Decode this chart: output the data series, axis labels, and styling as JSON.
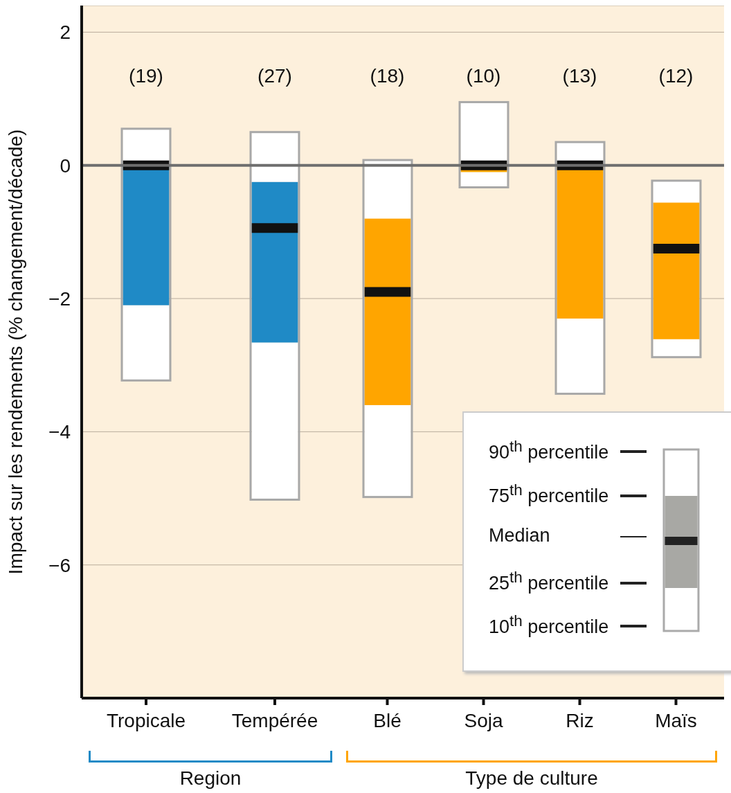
{
  "chart_data": [
    {
      "type": "box",
      "ylabel": "Impact sur les rendements (% changement/décade)",
      "xlabel": "Region",
      "categories": [
        "Tropicale",
        "Tempérée"
      ],
      "color": "#1f8ac6",
      "ylim": [
        -8,
        2.4
      ],
      "yticks": [
        2,
        0,
        -2,
        -4,
        -6
      ],
      "grid": "y",
      "ref_lines": [
        {
          "axis": "y",
          "value": 0,
          "color": "#6e6e6e"
        }
      ],
      "boxes": [
        {
          "low": -3.23,
          "q1": -2.1,
          "median": 0,
          "q3": 0,
          "high": 0.55
        },
        {
          "low": -5.02,
          "q1": -2.66,
          "median": -0.94,
          "q3": -0.25,
          "high": 0.5
        }
      ],
      "annotations": [
        "(19)",
        "(27)"
      ]
    },
    {
      "type": "box",
      "xlabel": "Type de culture",
      "categories": [
        "Blé",
        "Soja",
        "Riz",
        "Maïs"
      ],
      "color": "#ffa500",
      "ylim": [
        -8,
        2.4
      ],
      "yticks": [
        2,
        0,
        -2,
        -4,
        -6
      ],
      "grid": "y",
      "tick_labels": "x",
      "ref_lines": [
        {
          "axis": "y",
          "value": 0,
          "color": "#6e6e6e"
        }
      ],
      "boxes": [
        {
          "low": -4.98,
          "q1": -3.6,
          "median": -1.9,
          "q3": -0.8,
          "high": 0.08
        },
        {
          "low": -0.33,
          "q1": -0.1,
          "median": 0,
          "q3": 0,
          "high": 0.95
        },
        {
          "low": -3.43,
          "q1": -2.3,
          "median": 0,
          "q3": 0,
          "high": 0.35
        },
        {
          "low": -2.88,
          "q1": -2.61,
          "median": -1.25,
          "q3": -0.56,
          "high": -0.23
        }
      ],
      "annotations": [
        "(18)",
        "(10)",
        "(13)",
        "(12)",
        "90$^{th}$ percentile",
        "75$^{th}$ percentile",
        "Median",
        "25$^{th}$ percentile",
        "10$^{th}$ percentile"
      ]
    }
  ]
}
